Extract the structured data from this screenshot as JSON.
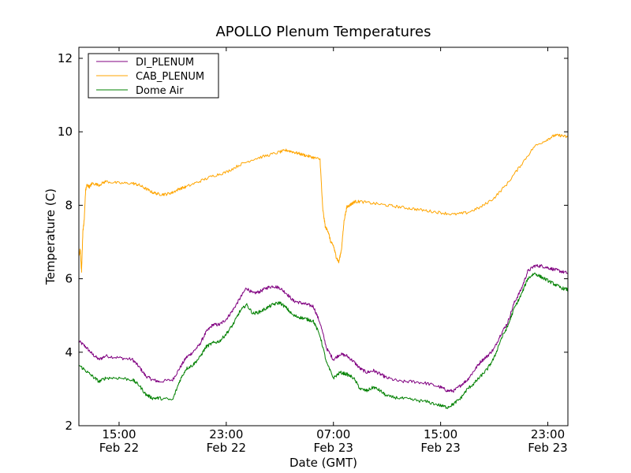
{
  "chart_data": {
    "type": "line",
    "title": "APOLLO Plenum Temperatures",
    "xlabel": "Date (GMT)",
    "ylabel": "Temperature (C)",
    "x_unit": "hours since Feb 22 11:00 GMT",
    "xlim": [
      0,
      36.5
    ],
    "ylim": [
      2,
      12.3
    ],
    "yticks": [
      2,
      4,
      6,
      8,
      10,
      12
    ],
    "xticks": [
      {
        "x": 3,
        "time": "15:00",
        "date": "Feb 22"
      },
      {
        "x": 11,
        "time": "23:00",
        "date": "Feb 22"
      },
      {
        "x": 19,
        "time": "07:00",
        "date": "Feb 23"
      },
      {
        "x": 27,
        "time": "15:00",
        "date": "Feb 23"
      },
      {
        "x": 35,
        "time": "23:00",
        "date": "Feb 23"
      }
    ],
    "legend_position": "top-left",
    "series": [
      {
        "name": "DI_PLENUM",
        "color": "#800080",
        "x": [
          0,
          0.5,
          1,
          1.5,
          2,
          3,
          4,
          4.5,
          5,
          5.5,
          6,
          7,
          7.5,
          8,
          8.5,
          9,
          9.5,
          10,
          10.5,
          11,
          11.5,
          12,
          12.5,
          13,
          13.5,
          14,
          14.5,
          15,
          15.5,
          16,
          16.5,
          17,
          17.5,
          18,
          18.5,
          19,
          19.5,
          20,
          20.5,
          21,
          21.5,
          22,
          22.5,
          23,
          24,
          25,
          26,
          27,
          27.5,
          28,
          28.5,
          29,
          29.5,
          30,
          30.5,
          31,
          31.5,
          32,
          32.5,
          33,
          33.5,
          34,
          34.5,
          35,
          35.5,
          36,
          36.5
        ],
        "y": [
          4.3,
          4.15,
          3.95,
          3.8,
          3.9,
          3.85,
          3.8,
          3.6,
          3.35,
          3.25,
          3.2,
          3.25,
          3.55,
          3.85,
          4.0,
          4.2,
          4.55,
          4.75,
          4.75,
          4.9,
          5.15,
          5.45,
          5.75,
          5.6,
          5.65,
          5.75,
          5.8,
          5.75,
          5.6,
          5.4,
          5.35,
          5.3,
          5.25,
          4.8,
          4.1,
          3.8,
          3.95,
          3.9,
          3.75,
          3.55,
          3.45,
          3.5,
          3.4,
          3.3,
          3.2,
          3.2,
          3.15,
          3.05,
          2.95,
          2.95,
          3.1,
          3.25,
          3.5,
          3.75,
          3.9,
          4.1,
          4.5,
          4.8,
          5.35,
          5.7,
          6.2,
          6.35,
          6.35,
          6.3,
          6.25,
          6.2,
          6.15
        ]
      },
      {
        "name": "CAB_PLENUM",
        "color": "#ffa500",
        "x": [
          0,
          0.1,
          0.2,
          0.3,
          0.4,
          0.5,
          0.6,
          0.8,
          1,
          1.5,
          2,
          3,
          4,
          4.5,
          5,
          5.5,
          6,
          6.5,
          7,
          7.5,
          8,
          9,
          10,
          11,
          12,
          13,
          14,
          15,
          15.5,
          16,
          16.5,
          17,
          17.5,
          18,
          18.2,
          18.4,
          18.6,
          18.8,
          19,
          19.2,
          19.4,
          19.6,
          19.8,
          20,
          20.2,
          20.4,
          20.6,
          21,
          22,
          23,
          24,
          25,
          26,
          27,
          28,
          29,
          30,
          31,
          32,
          33,
          34,
          35,
          35.5,
          36,
          36.5
        ],
        "y": [
          6.6,
          6.8,
          6.2,
          7.3,
          7.6,
          8.4,
          8.55,
          8.5,
          8.6,
          8.55,
          8.65,
          8.6,
          8.6,
          8.55,
          8.45,
          8.35,
          8.3,
          8.3,
          8.35,
          8.45,
          8.5,
          8.65,
          8.8,
          8.9,
          9.1,
          9.25,
          9.35,
          9.45,
          9.5,
          9.45,
          9.4,
          9.35,
          9.3,
          9.25,
          7.9,
          7.4,
          7.3,
          7.0,
          6.9,
          6.6,
          6.45,
          6.8,
          7.6,
          7.95,
          8.0,
          8.05,
          8.1,
          8.1,
          8.05,
          8.0,
          7.95,
          7.9,
          7.85,
          7.8,
          7.75,
          7.8,
          7.95,
          8.2,
          8.6,
          9.1,
          9.6,
          9.8,
          9.9,
          9.9,
          9.85
        ]
      },
      {
        "name": "Dome Air",
        "color": "#008000",
        "x": [
          0,
          0.5,
          1,
          1.5,
          2,
          3,
          4,
          4.5,
          5,
          5.5,
          6,
          7,
          7.5,
          8,
          8.5,
          9,
          9.5,
          10,
          10.5,
          11,
          11.5,
          12,
          12.5,
          13,
          13.5,
          14,
          14.5,
          15,
          15.5,
          16,
          16.5,
          17,
          17.5,
          18,
          18.5,
          19,
          19.5,
          20,
          20.5,
          21,
          21.5,
          22,
          22.5,
          23,
          24,
          25,
          26,
          27,
          27.5,
          28,
          28.5,
          29,
          29.5,
          30,
          30.5,
          31,
          31.5,
          32,
          32.5,
          33,
          33.5,
          34,
          34.5,
          35,
          35.5,
          36,
          36.5
        ],
        "y": [
          3.65,
          3.5,
          3.35,
          3.2,
          3.3,
          3.3,
          3.25,
          3.1,
          2.85,
          2.75,
          2.75,
          2.7,
          3.2,
          3.55,
          3.65,
          3.85,
          4.15,
          4.25,
          4.3,
          4.5,
          4.75,
          5.1,
          5.3,
          5.05,
          5.1,
          5.2,
          5.3,
          5.35,
          5.2,
          5.0,
          4.95,
          4.9,
          4.85,
          4.45,
          3.7,
          3.3,
          3.45,
          3.4,
          3.3,
          3.0,
          2.95,
          3.05,
          2.95,
          2.8,
          2.75,
          2.7,
          2.65,
          2.55,
          2.5,
          2.6,
          2.75,
          3.0,
          3.15,
          3.35,
          3.55,
          3.85,
          4.35,
          4.7,
          5.2,
          5.55,
          6.0,
          6.15,
          6.05,
          5.95,
          5.85,
          5.75,
          5.7
        ]
      }
    ]
  }
}
